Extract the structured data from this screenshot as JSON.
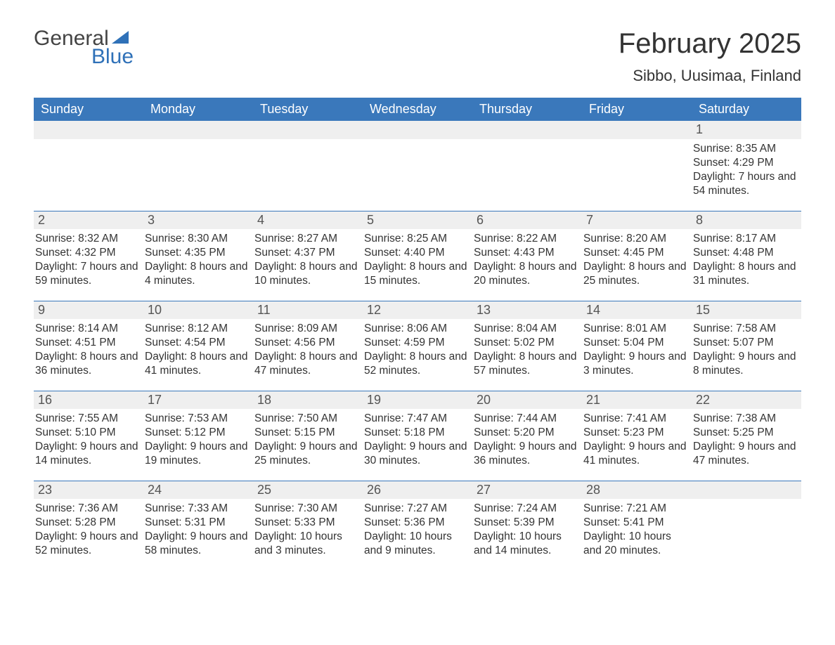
{
  "brand": {
    "word1": "General",
    "word2": "Blue",
    "logo_color": "#2f71b8"
  },
  "title": "February 2025",
  "location": "Sibbo, Uusimaa, Finland",
  "colors": {
    "header_bg": "#3a78bb",
    "header_text": "#ffffff",
    "row_divider": "#3a78bb",
    "daynum_bg": "#efefef",
    "text": "#333333",
    "background": "#ffffff"
  },
  "typography": {
    "title_fontsize": 40,
    "location_fontsize": 22,
    "weekday_fontsize": 18,
    "body_fontsize": 15.5,
    "logo_fontsize": 30
  },
  "weekdays": [
    "Sunday",
    "Monday",
    "Tuesday",
    "Wednesday",
    "Thursday",
    "Friday",
    "Saturday"
  ],
  "labels": {
    "sunrise": "Sunrise:",
    "sunset": "Sunset:",
    "daylight": "Daylight:"
  },
  "layout": {
    "columns": 7,
    "rows": 5,
    "start_weekday_index": 6
  },
  "days": [
    {
      "n": 1,
      "sunrise": "8:35 AM",
      "sunset": "4:29 PM",
      "daylight": "7 hours and 54 minutes."
    },
    {
      "n": 2,
      "sunrise": "8:32 AM",
      "sunset": "4:32 PM",
      "daylight": "7 hours and 59 minutes."
    },
    {
      "n": 3,
      "sunrise": "8:30 AM",
      "sunset": "4:35 PM",
      "daylight": "8 hours and 4 minutes."
    },
    {
      "n": 4,
      "sunrise": "8:27 AM",
      "sunset": "4:37 PM",
      "daylight": "8 hours and 10 minutes."
    },
    {
      "n": 5,
      "sunrise": "8:25 AM",
      "sunset": "4:40 PM",
      "daylight": "8 hours and 15 minutes."
    },
    {
      "n": 6,
      "sunrise": "8:22 AM",
      "sunset": "4:43 PM",
      "daylight": "8 hours and 20 minutes."
    },
    {
      "n": 7,
      "sunrise": "8:20 AM",
      "sunset": "4:45 PM",
      "daylight": "8 hours and 25 minutes."
    },
    {
      "n": 8,
      "sunrise": "8:17 AM",
      "sunset": "4:48 PM",
      "daylight": "8 hours and 31 minutes."
    },
    {
      "n": 9,
      "sunrise": "8:14 AM",
      "sunset": "4:51 PM",
      "daylight": "8 hours and 36 minutes."
    },
    {
      "n": 10,
      "sunrise": "8:12 AM",
      "sunset": "4:54 PM",
      "daylight": "8 hours and 41 minutes."
    },
    {
      "n": 11,
      "sunrise": "8:09 AM",
      "sunset": "4:56 PM",
      "daylight": "8 hours and 47 minutes."
    },
    {
      "n": 12,
      "sunrise": "8:06 AM",
      "sunset": "4:59 PM",
      "daylight": "8 hours and 52 minutes."
    },
    {
      "n": 13,
      "sunrise": "8:04 AM",
      "sunset": "5:02 PM",
      "daylight": "8 hours and 57 minutes."
    },
    {
      "n": 14,
      "sunrise": "8:01 AM",
      "sunset": "5:04 PM",
      "daylight": "9 hours and 3 minutes."
    },
    {
      "n": 15,
      "sunrise": "7:58 AM",
      "sunset": "5:07 PM",
      "daylight": "9 hours and 8 minutes."
    },
    {
      "n": 16,
      "sunrise": "7:55 AM",
      "sunset": "5:10 PM",
      "daylight": "9 hours and 14 minutes."
    },
    {
      "n": 17,
      "sunrise": "7:53 AM",
      "sunset": "5:12 PM",
      "daylight": "9 hours and 19 minutes."
    },
    {
      "n": 18,
      "sunrise": "7:50 AM",
      "sunset": "5:15 PM",
      "daylight": "9 hours and 25 minutes."
    },
    {
      "n": 19,
      "sunrise": "7:47 AM",
      "sunset": "5:18 PM",
      "daylight": "9 hours and 30 minutes."
    },
    {
      "n": 20,
      "sunrise": "7:44 AM",
      "sunset": "5:20 PM",
      "daylight": "9 hours and 36 minutes."
    },
    {
      "n": 21,
      "sunrise": "7:41 AM",
      "sunset": "5:23 PM",
      "daylight": "9 hours and 41 minutes."
    },
    {
      "n": 22,
      "sunrise": "7:38 AM",
      "sunset": "5:25 PM",
      "daylight": "9 hours and 47 minutes."
    },
    {
      "n": 23,
      "sunrise": "7:36 AM",
      "sunset": "5:28 PM",
      "daylight": "9 hours and 52 minutes."
    },
    {
      "n": 24,
      "sunrise": "7:33 AM",
      "sunset": "5:31 PM",
      "daylight": "9 hours and 58 minutes."
    },
    {
      "n": 25,
      "sunrise": "7:30 AM",
      "sunset": "5:33 PM",
      "daylight": "10 hours and 3 minutes."
    },
    {
      "n": 26,
      "sunrise": "7:27 AM",
      "sunset": "5:36 PM",
      "daylight": "10 hours and 9 minutes."
    },
    {
      "n": 27,
      "sunrise": "7:24 AM",
      "sunset": "5:39 PM",
      "daylight": "10 hours and 14 minutes."
    },
    {
      "n": 28,
      "sunrise": "7:21 AM",
      "sunset": "5:41 PM",
      "daylight": "10 hours and 20 minutes."
    }
  ]
}
